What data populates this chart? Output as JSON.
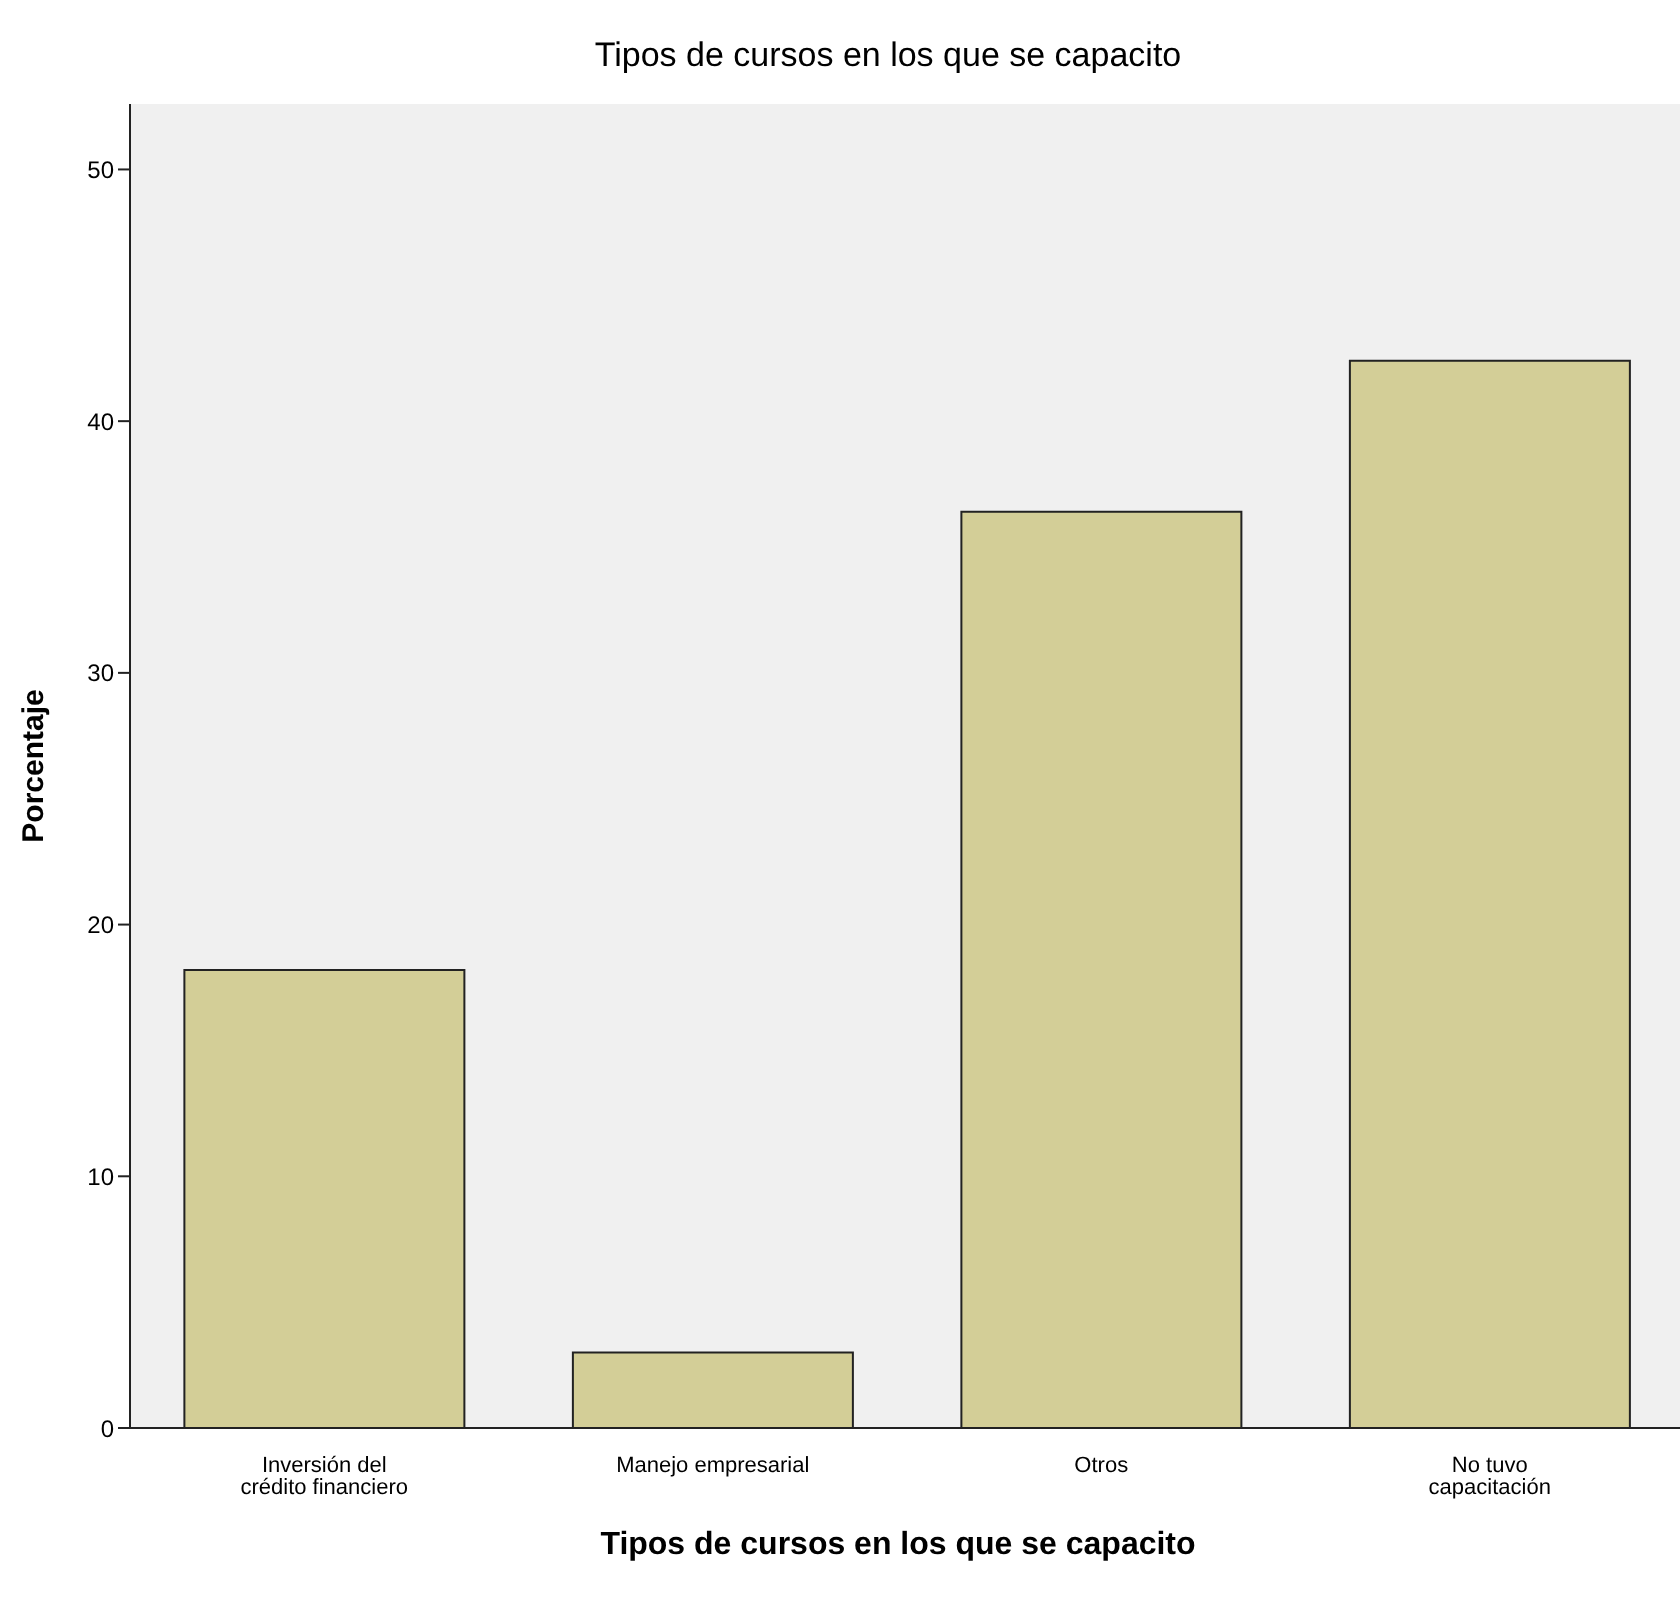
{
  "chart_data": {
    "type": "bar",
    "title": "Tipos de cursos en los que se capacito",
    "xlabel": "Tipos de cursos en los que se capacito",
    "ylabel": "Porcentaje",
    "categories": [
      "Inversión del crédito financiero",
      "Manejo empresarial",
      "Otros",
      "No tuvo capacitación"
    ],
    "values": [
      18.2,
      3.0,
      36.4,
      42.4
    ],
    "color": "#d3ce97",
    "ylim": [
      0,
      52.6
    ],
    "yticks": [
      0,
      10,
      20,
      30,
      40,
      50
    ],
    "grid": false
  }
}
